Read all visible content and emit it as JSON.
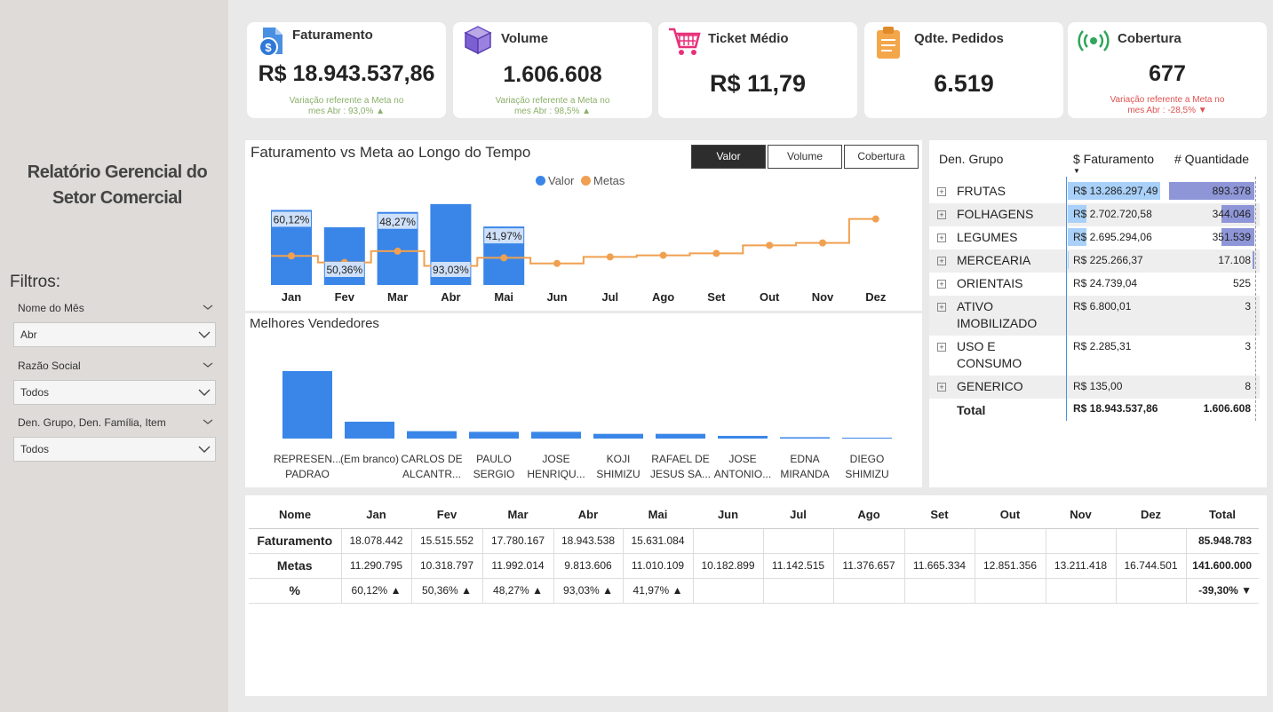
{
  "sidebar": {
    "title": "Relatório Gerencial do Setor Comercial",
    "filters_label": "Filtros:",
    "filters": [
      {
        "label": "Nome do Mês",
        "value": "Abr"
      },
      {
        "label": "Razão Social",
        "value": "Todos"
      },
      {
        "label": "Den. Grupo, Den. Família, Item",
        "value": "Todos"
      }
    ]
  },
  "kpis": [
    {
      "title": "Faturamento",
      "value": "R$ 18.943.537,86",
      "note1": "Variação referente a Meta no",
      "note2": "mes Abr : 93,0% ▲",
      "note_color": "#8bb06a",
      "icon": "money-document-icon"
    },
    {
      "title": "Volume",
      "value": "1.606.608",
      "note1": "Variação referente a Meta no",
      "note2": "mes Abr : 98,5% ▲",
      "note_color": "#8bb06a",
      "icon": "cube-icon"
    },
    {
      "title": "Ticket Médio",
      "value": "R$ 11,79",
      "note1": "",
      "note2": "",
      "note_color": "#8bb06a",
      "icon": "shopping-cart-icon"
    },
    {
      "title": "Qdte. Pedidos",
      "value": "6.519",
      "note1": "",
      "note2": "",
      "note_color": "#8bb06a",
      "icon": "clipboard-icon"
    },
    {
      "title": "Cobertura",
      "value": "677",
      "note1": "Variação referente a Meta no",
      "note2": "mes Abr : -28,5% ▼",
      "note_color": "#e05252",
      "icon": "broadcast-icon"
    }
  ],
  "colors": {
    "bar": "#3a86e8",
    "meta": "#f0a050",
    "bar_label_bg": "#cfe1fa",
    "green": "#8bb06a",
    "red": "#e05252",
    "qty_bar": "#8e96d8",
    "fat_bar": "#a8d0f8"
  },
  "chart_data": [
    {
      "type": "bar",
      "title": "Faturamento vs Meta ao Longo do Tempo",
      "categories": [
        "Jan",
        "Fev",
        "Mar",
        "Abr",
        "Mai",
        "Jun",
        "Jul",
        "Ago",
        "Set",
        "Out",
        "Nov",
        "Dez"
      ],
      "series": [
        {
          "name": "Valor",
          "values": [
            18078442,
            15515552,
            17780167,
            18943538,
            15631084,
            null,
            null,
            null,
            null,
            null,
            null,
            null
          ]
        },
        {
          "name": "Metas",
          "values": [
            11290795,
            10318797,
            11992014,
            9813606,
            11010109,
            10182899,
            11142515,
            11376657,
            11665334,
            12851356,
            13211418,
            16744501
          ]
        }
      ],
      "data_labels": [
        "60,12%",
        "50,36%",
        "48,27%",
        "93,03%",
        "41,97%"
      ],
      "label_position": [
        "top",
        "bottom",
        "top",
        "bottom",
        "top"
      ],
      "buttons": [
        "Valor",
        "Volume",
        "Cobertura"
      ],
      "active_button": "Valor",
      "legend_position": "top-center"
    },
    {
      "type": "bar",
      "title": "Melhores Vendedores",
      "categories": [
        [
          "REPRESEN...",
          "PADRAO"
        ],
        [
          "(Em branco)",
          ""
        ],
        [
          "CARLOS DE",
          "ALCANTR..."
        ],
        [
          "PAULO",
          "SERGIO"
        ],
        [
          "JOSE",
          "HENRIQU..."
        ],
        [
          "KOJI",
          "SHIMIZU"
        ],
        [
          "RAFAEL DE",
          "JESUS SA..."
        ],
        [
          "JOSE",
          "ANTONIO..."
        ],
        [
          "EDNA",
          "MIRANDA"
        ],
        [
          "DIEGO",
          "SHIMIZU"
        ]
      ],
      "values": [
        100,
        25,
        11,
        10,
        10,
        7,
        7,
        4,
        2,
        1
      ]
    }
  ],
  "grupo_table": {
    "headers": [
      "Den. Grupo",
      "$ Faturamento",
      "# Quantidade"
    ],
    "rows": [
      {
        "name": [
          "FRUTAS"
        ],
        "fat": "R$ 13.286.297,49",
        "qty": "893.378",
        "fat_frac": 0.7,
        "qty_frac": 1.0
      },
      {
        "name": [
          "FOLHAGENS"
        ],
        "fat": "R$ 2.702.720,58",
        "qty": "344.046",
        "fat_frac": 0.14,
        "qty_frac": 0.39
      },
      {
        "name": [
          "LEGUMES"
        ],
        "fat": "R$ 2.695.294,06",
        "qty": "351.539",
        "fat_frac": 0.14,
        "qty_frac": 0.39
      },
      {
        "name": [
          "MERCEARIA"
        ],
        "fat": "R$ 225.266,37",
        "qty": "17.108",
        "fat_frac": 0.01,
        "qty_frac": 0.02
      },
      {
        "name": [
          "ORIENTAIS"
        ],
        "fat": "R$ 24.739,04",
        "qty": "525",
        "fat_frac": 0,
        "qty_frac": 0
      },
      {
        "name": [
          "ATIVO",
          "IMOBILIZADO"
        ],
        "fat": "R$ 6.800,01",
        "qty": "3",
        "fat_frac": 0,
        "qty_frac": 0
      },
      {
        "name": [
          "USO E",
          "CONSUMO"
        ],
        "fat": "R$ 2.285,31",
        "qty": "3",
        "fat_frac": 0,
        "qty_frac": 0
      },
      {
        "name": [
          "GENERICO"
        ],
        "fat": "R$ 135,00",
        "qty": "8",
        "fat_frac": 0,
        "qty_frac": 0
      }
    ],
    "total": {
      "label": "Total",
      "fat": "R$ 18.943.537,86",
      "qty": "1.606.608"
    }
  },
  "monthly_table": {
    "headers": [
      "Nome",
      "Jan",
      "Fev",
      "Mar",
      "Abr",
      "Mai",
      "Jun",
      "Jul",
      "Ago",
      "Set",
      "Out",
      "Nov",
      "Dez",
      "Total"
    ],
    "rows": [
      {
        "label": "Faturamento",
        "cells": [
          "18.078.442",
          "15.515.552",
          "17.780.167",
          "18.943.538",
          "15.631.084",
          "",
          "",
          "",
          "",
          "",
          "",
          ""
        ],
        "total": "85.948.783"
      },
      {
        "label": "Metas",
        "cells": [
          "11.290.795",
          "10.318.797",
          "11.992.014",
          "9.813.606",
          "11.010.109",
          "10.182.899",
          "11.142.515",
          "11.376.657",
          "11.665.334",
          "12.851.356",
          "13.211.418",
          "16.744.501"
        ],
        "total": "141.600.000"
      },
      {
        "label": "%",
        "cells": [
          "60,12% ▲",
          "50,36% ▲",
          "48,27% ▲",
          "93,03% ▲",
          "41,97% ▲",
          "",
          "",
          "",
          "",
          "",
          "",
          ""
        ],
        "total": "-39,30% ▼"
      }
    ]
  }
}
